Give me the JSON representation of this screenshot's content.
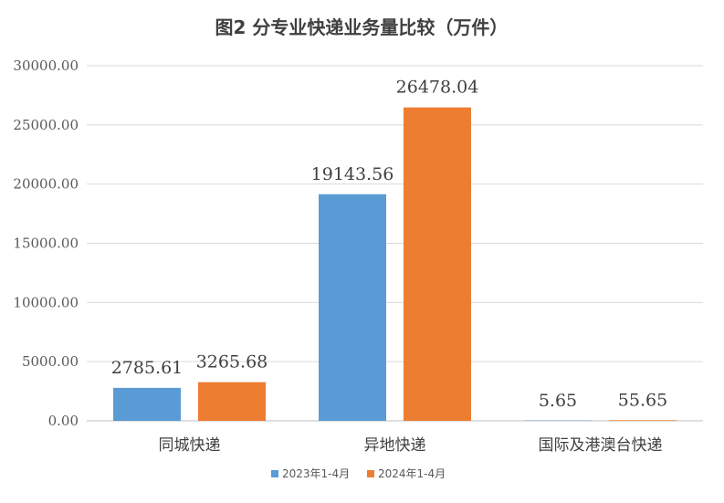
{
  "chart_data": {
    "type": "bar",
    "title": "图2    分专业快递业务量比较（万件）",
    "categories": [
      "同城快递",
      "异地快递",
      "国际及港澳台快递"
    ],
    "series": [
      {
        "name": "2023年1-4月",
        "color": "#5B9BD5",
        "values": [
          2785.61,
          19143.56,
          5.65
        ],
        "labels": [
          "2785.61",
          "19143.56",
          "5.65"
        ]
      },
      {
        "name": "2024年1-4月",
        "color": "#ED7D31",
        "values": [
          3265.68,
          26478.04,
          55.65
        ],
        "labels": [
          "3265.68",
          "26478.04",
          "55.65"
        ]
      }
    ],
    "yticks": [
      "0.00",
      "5000.00",
      "10000.00",
      "15000.00",
      "20000.00",
      "25000.00",
      "30000.00"
    ],
    "ylim": [
      0,
      30000
    ],
    "grid": true,
    "legend_position": "bottom"
  }
}
